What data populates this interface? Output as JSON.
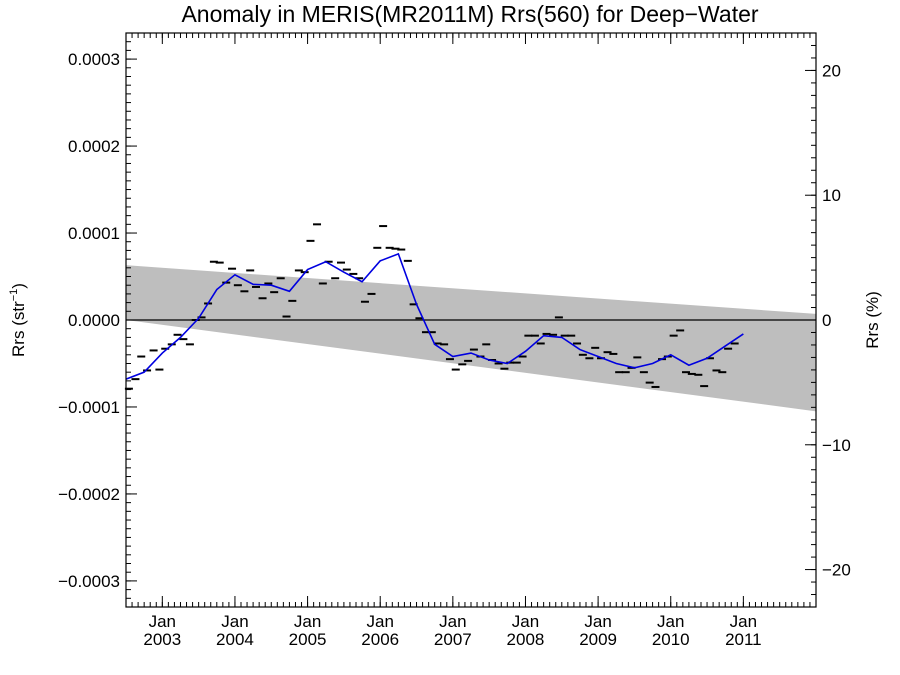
{
  "chart_data": {
    "type": "line",
    "title": "Anomaly in MERIS(MR2011M) Rrs(560) for Deep−Water",
    "ylabel_left": {
      "prefix": "Rrs (str",
      "superscript": "−1",
      "suffix": ")"
    },
    "ylabel_right": "Rrs (%)",
    "x_range": [
      2002.5,
      2012.0
    ],
    "y_range": [
      -0.00033,
      0.00033
    ],
    "y2_range": [
      -23.0,
      23.0
    ],
    "x_ticks": [
      {
        "x": 2003.0,
        "line1": "Jan",
        "line2": "2003"
      },
      {
        "x": 2004.0,
        "line1": "Jan",
        "line2": "2004"
      },
      {
        "x": 2005.0,
        "line1": "Jan",
        "line2": "2005"
      },
      {
        "x": 2006.0,
        "line1": "Jan",
        "line2": "2006"
      },
      {
        "x": 2007.0,
        "line1": "Jan",
        "line2": "2007"
      },
      {
        "x": 2008.0,
        "line1": "Jan",
        "line2": "2008"
      },
      {
        "x": 2009.0,
        "line1": "Jan",
        "line2": "2009"
      },
      {
        "x": 2010.0,
        "line1": "Jan",
        "line2": "2010"
      },
      {
        "x": 2011.0,
        "line1": "Jan",
        "line2": "2011"
      }
    ],
    "y_ticks": [
      {
        "v": 0.0003,
        "label": "0.0003"
      },
      {
        "v": 0.0002,
        "label": "0.0002"
      },
      {
        "v": 0.0001,
        "label": "0.0001"
      },
      {
        "v": 0.0,
        "label": "0.0000"
      },
      {
        "v": -0.0001,
        "label": "−0.0001"
      },
      {
        "v": -0.0002,
        "label": "−0.0002"
      },
      {
        "v": -0.0003,
        "label": "−0.0003"
      }
    ],
    "y2_ticks": [
      {
        "v": 20,
        "label": "20"
      },
      {
        "v": 10,
        "label": "10"
      },
      {
        "v": 0,
        "label": "0"
      },
      {
        "v": -10,
        "label": "−10"
      },
      {
        "v": -20,
        "label": "−20"
      }
    ],
    "zero_line": 0.0,
    "uncertainty_band": {
      "color": "#bebebe",
      "start": {
        "x": 2002.5,
        "upper": 6.3e-05,
        "lower": 0.0
      },
      "end": {
        "x": 2012.0,
        "upper": 7e-06,
        "lower": -0.000105
      }
    },
    "series": [
      {
        "kind": "monthly_markers",
        "color": "#000000",
        "points": [
          [
            2002.54,
            -7.9e-05
          ],
          [
            2002.63,
            -6.8e-05
          ],
          [
            2002.71,
            -4.2e-05
          ],
          [
            2002.79,
            -5.8e-05
          ],
          [
            2002.88,
            -3.5e-05
          ],
          [
            2002.96,
            -5.7e-05
          ],
          [
            2003.04,
            -3.3e-05
          ],
          [
            2003.13,
            -2.8e-05
          ],
          [
            2003.21,
            -1.7e-05
          ],
          [
            2003.29,
            -2.2e-05
          ],
          [
            2003.38,
            -2.8e-05
          ],
          [
            2003.46,
            0.0
          ],
          [
            2003.54,
            3e-06
          ],
          [
            2003.63,
            1.9e-05
          ],
          [
            2003.71,
            6.7e-05
          ],
          [
            2003.79,
            6.6e-05
          ],
          [
            2003.88,
            4.3e-05
          ],
          [
            2003.96,
            5.9e-05
          ],
          [
            2004.04,
            4e-05
          ],
          [
            2004.13,
            3.3e-05
          ],
          [
            2004.21,
            5.7e-05
          ],
          [
            2004.29,
            3.8e-05
          ],
          [
            2004.38,
            2.5e-05
          ],
          [
            2004.46,
            4.2e-05
          ],
          [
            2004.54,
            3.2e-05
          ],
          [
            2004.63,
            4.8e-05
          ],
          [
            2004.71,
            4e-06
          ],
          [
            2004.79,
            2.2e-05
          ],
          [
            2004.88,
            5.7e-05
          ],
          [
            2004.96,
            5.5e-05
          ],
          [
            2005.04,
            9.1e-05
          ],
          [
            2005.13,
            0.00011
          ],
          [
            2005.21,
            4.2e-05
          ],
          [
            2005.29,
            6.7e-05
          ],
          [
            2005.38,
            4.8e-05
          ],
          [
            2005.46,
            6.6e-05
          ],
          [
            2005.54,
            5.8e-05
          ],
          [
            2005.63,
            5.3e-05
          ],
          [
            2005.71,
            4.8e-05
          ],
          [
            2005.79,
            2.1e-05
          ],
          [
            2005.88,
            3e-05
          ],
          [
            2005.96,
            8.3e-05
          ],
          [
            2006.04,
            0.000108
          ],
          [
            2006.13,
            8.3e-05
          ],
          [
            2006.21,
            8.2e-05
          ],
          [
            2006.29,
            8.1e-05
          ],
          [
            2006.38,
            6.8e-05
          ],
          [
            2006.46,
            1.8e-05
          ],
          [
            2006.54,
            2e-06
          ],
          [
            2006.63,
            -1.4e-05
          ],
          [
            2006.71,
            -1.4e-05
          ],
          [
            2006.79,
            -2.7e-05
          ],
          [
            2006.88,
            -2.8e-05
          ],
          [
            2006.96,
            -4.5e-05
          ],
          [
            2007.04,
            -5.7e-05
          ],
          [
            2007.13,
            -5.1e-05
          ],
          [
            2007.21,
            -4.7e-05
          ],
          [
            2007.29,
            -3.4e-05
          ],
          [
            2007.38,
            -4.2e-05
          ],
          [
            2007.46,
            -2.8e-05
          ],
          [
            2007.54,
            -4.6e-05
          ],
          [
            2007.63,
            -5e-05
          ],
          [
            2007.71,
            -5.6e-05
          ],
          [
            2007.79,
            -4.9e-05
          ],
          [
            2007.88,
            -4.9e-05
          ],
          [
            2007.96,
            -4.2e-05
          ],
          [
            2008.04,
            -1.8e-05
          ],
          [
            2008.13,
            -1.8e-05
          ],
          [
            2008.21,
            -2.7e-05
          ],
          [
            2008.29,
            -1.6e-05
          ],
          [
            2008.38,
            -1.7e-05
          ],
          [
            2008.46,
            3e-06
          ],
          [
            2008.54,
            -1.8e-05
          ],
          [
            2008.63,
            -1.8e-05
          ],
          [
            2008.71,
            -2.7e-05
          ],
          [
            2008.79,
            -4e-05
          ],
          [
            2008.88,
            -4.4e-05
          ],
          [
            2008.96,
            -3.2e-05
          ],
          [
            2009.04,
            -4.4e-05
          ],
          [
            2009.13,
            -3.7e-05
          ],
          [
            2009.21,
            -3.9e-05
          ],
          [
            2009.29,
            -6e-05
          ],
          [
            2009.38,
            -6e-05
          ],
          [
            2009.46,
            -5.5e-05
          ],
          [
            2009.54,
            -4.3e-05
          ],
          [
            2009.63,
            -6e-05
          ],
          [
            2009.71,
            -7.2e-05
          ],
          [
            2009.79,
            -7.7e-05
          ],
          [
            2009.88,
            -4.5e-05
          ],
          [
            2009.96,
            -4.2e-05
          ],
          [
            2010.04,
            -1.8e-05
          ],
          [
            2010.13,
            -1.2e-05
          ],
          [
            2010.21,
            -6e-05
          ],
          [
            2010.29,
            -6.2e-05
          ],
          [
            2010.38,
            -6.3e-05
          ],
          [
            2010.46,
            -7.6e-05
          ],
          [
            2010.54,
            -4.4e-05
          ],
          [
            2010.63,
            -5.8e-05
          ],
          [
            2010.71,
            -6e-05
          ],
          [
            2010.79,
            -3.3e-05
          ],
          [
            2010.88,
            -2.7e-05
          ]
        ]
      },
      {
        "kind": "smoothed_line",
        "color": "#0000e0",
        "points": [
          [
            2002.5,
            -6.8e-05
          ],
          [
            2002.75,
            -6e-05
          ],
          [
            2003.0,
            -3.8e-05
          ],
          [
            2003.25,
            -2e-05
          ],
          [
            2003.5,
            2e-06
          ],
          [
            2003.75,
            3.5e-05
          ],
          [
            2004.0,
            5.2e-05
          ],
          [
            2004.25,
            4.1e-05
          ],
          [
            2004.5,
            4e-05
          ],
          [
            2004.75,
            3.3e-05
          ],
          [
            2005.0,
            5.8e-05
          ],
          [
            2005.25,
            6.7e-05
          ],
          [
            2005.5,
            5.5e-05
          ],
          [
            2005.75,
            4.4e-05
          ],
          [
            2006.0,
            6.8e-05
          ],
          [
            2006.25,
            7.6e-05
          ],
          [
            2006.5,
            1.8e-05
          ],
          [
            2006.75,
            -2.8e-05
          ],
          [
            2007.0,
            -4.2e-05
          ],
          [
            2007.25,
            -3.8e-05
          ],
          [
            2007.5,
            -4.6e-05
          ],
          [
            2007.75,
            -5e-05
          ],
          [
            2008.0,
            -3.6e-05
          ],
          [
            2008.25,
            -1.8e-05
          ],
          [
            2008.5,
            -2e-05
          ],
          [
            2008.75,
            -3.4e-05
          ],
          [
            2009.0,
            -4.2e-05
          ],
          [
            2009.25,
            -5e-05
          ],
          [
            2009.5,
            -5.5e-05
          ],
          [
            2009.75,
            -5e-05
          ],
          [
            2010.0,
            -4e-05
          ],
          [
            2010.25,
            -5.2e-05
          ],
          [
            2010.5,
            -4.4e-05
          ],
          [
            2010.75,
            -3e-05
          ],
          [
            2011.0,
            -1.6e-05
          ]
        ]
      }
    ]
  }
}
